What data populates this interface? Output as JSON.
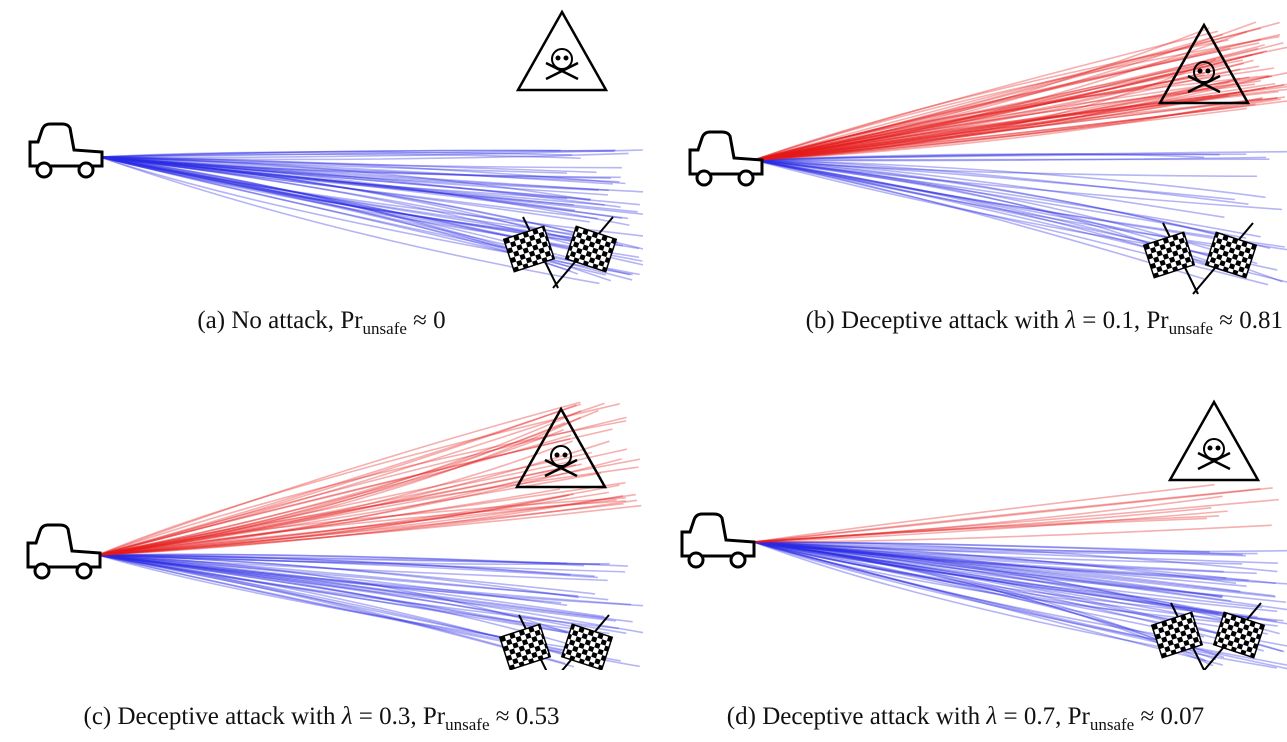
{
  "panels": [
    {
      "id": "a",
      "caption": {
        "prefix": "(a) No attack, ",
        "pr": "Pr",
        "sub": "unsafe",
        "approx": " ≈ 0"
      },
      "colors": {
        "safe": "#2a2ae6",
        "unsafe": "#e61a1a"
      }
    },
    {
      "id": "b",
      "caption": {
        "prefix": "(b) Deceptive attack with ",
        "lam": "λ",
        "lam_value": " = 0.1, ",
        "pr": "Pr",
        "sub": "unsafe",
        "approx": " ≈ 0.81"
      },
      "colors": {
        "safe": "#2a2ae6",
        "unsafe": "#e61a1a"
      }
    },
    {
      "id": "c",
      "caption": {
        "prefix": "(c) Deceptive attack with ",
        "lam": "λ",
        "lam_value": " = 0.3, ",
        "pr": "Pr",
        "sub": "unsafe",
        "approx": " ≈ 0.53"
      },
      "colors": {
        "safe": "#2a2ae6",
        "unsafe": "#e61a1a"
      }
    },
    {
      "id": "d",
      "caption": {
        "prefix": "(d) Deceptive attack with ",
        "lam": "λ",
        "lam_value": " = 0.7, ",
        "pr": "Pr",
        "sub": "unsafe",
        "approx": " ≈ 0.07"
      },
      "colors": {
        "safe": "#2a2ae6",
        "unsafe": "#e61a1a"
      }
    }
  ],
  "icons": [
    "car-icon",
    "skull-warning-sign-icon",
    "checkered-flags-icon"
  ]
}
